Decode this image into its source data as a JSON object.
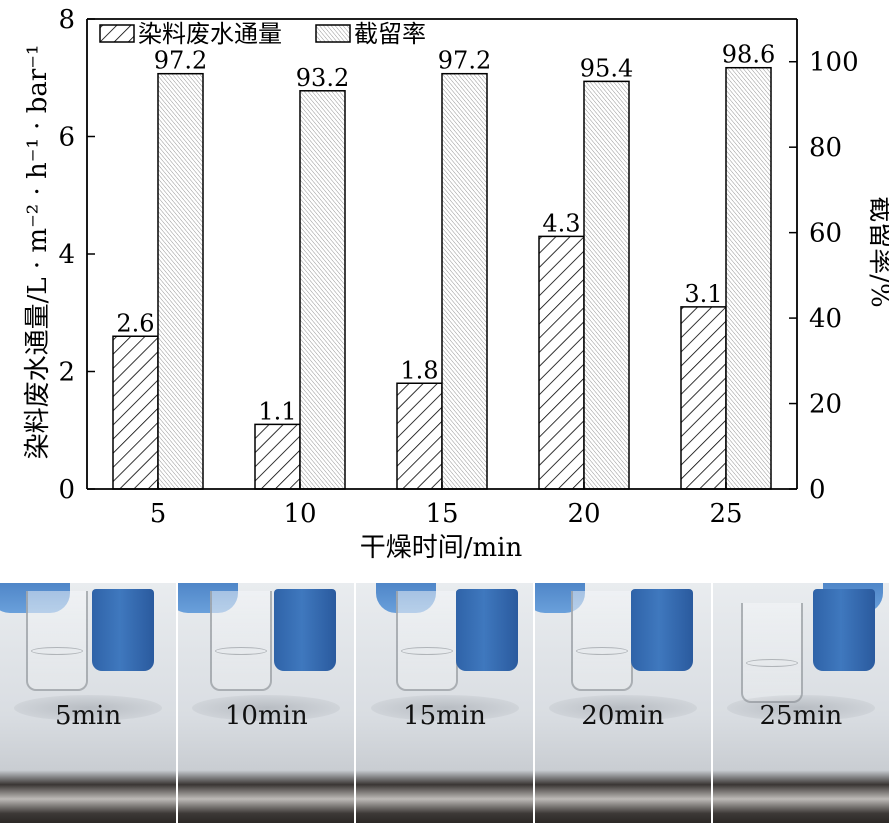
{
  "chart_data": {
    "type": "bar",
    "categories": [
      "5",
      "10",
      "15",
      "20",
      "25"
    ],
    "series": [
      {
        "name": "染料废水通量",
        "axis": "left",
        "values": [
          2.6,
          1.1,
          1.8,
          4.3,
          3.1
        ],
        "labels": [
          "2.6",
          "1.1",
          "1.8",
          "4.3",
          "3.1"
        ],
        "pattern": "diagonal-hatch"
      },
      {
        "name": "截留率",
        "axis": "right",
        "values": [
          97.2,
          93.2,
          97.2,
          95.4,
          98.6
        ],
        "labels": [
          "97.2",
          "93.2",
          "97.2",
          "95.4",
          "98.6"
        ],
        "pattern": "dense-cross-hatch"
      }
    ],
    "xlabel": "干燥时间/min",
    "ylabel": "染料废水通量/L · m⁻² · h⁻¹ · bar⁻¹",
    "y2label": "截留率/%",
    "ylim": [
      0,
      8
    ],
    "y2lim": [
      0,
      110
    ],
    "yticks": [
      "0",
      "2",
      "4",
      "6",
      "8"
    ],
    "y2ticks": [
      "0",
      "20",
      "40",
      "60",
      "80",
      "100"
    ],
    "legend_placement": "top-left",
    "grid": false
  },
  "photos": [
    {
      "label": "5min"
    },
    {
      "label": "10min"
    },
    {
      "label": "15min"
    },
    {
      "label": "20min"
    },
    {
      "label": "25min"
    }
  ]
}
